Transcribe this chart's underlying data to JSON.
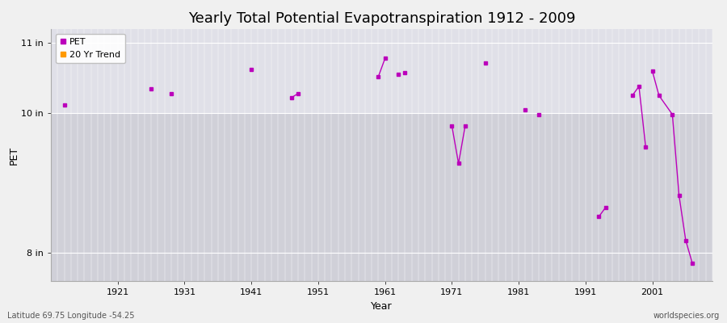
{
  "title": "Yearly Total Potential Evapotranspiration 1912 - 2009",
  "xlabel": "Year",
  "ylabel": "PET",
  "xlim": [
    1911,
    2010
  ],
  "ylim": [
    7.6,
    11.2
  ],
  "ytick_positions": [
    8,
    10,
    11
  ],
  "ytick_labels": [
    "8 in",
    "10 in",
    "11 in"
  ],
  "xticks": [
    1921,
    1931,
    1941,
    1951,
    1961,
    1971,
    1981,
    1991,
    2001
  ],
  "background_color": "#f0f0f0",
  "plot_bg_color_top": "#e8e8ec",
  "plot_bg_color_bottom": "#d8d8de",
  "grid_color": "#ffffff",
  "pet_color": "#bb00bb",
  "trend_color": "#ff9900",
  "pet_data": [
    [
      1913,
      10.12
    ],
    [
      1926,
      10.35
    ],
    [
      1929,
      10.28
    ],
    [
      1941,
      10.62
    ],
    [
      1947,
      10.22
    ],
    [
      1948,
      10.28
    ],
    [
      1960,
      10.52
    ],
    [
      1961,
      10.78
    ],
    [
      1963,
      10.55
    ],
    [
      1964,
      10.58
    ],
    [
      1971,
      9.82
    ],
    [
      1972,
      9.28
    ],
    [
      1973,
      9.82
    ],
    [
      1976,
      10.72
    ],
    [
      1982,
      10.05
    ],
    [
      1984,
      9.98
    ],
    [
      1993,
      8.52
    ],
    [
      1994,
      8.65
    ],
    [
      1998,
      10.25
    ],
    [
      1999,
      10.38
    ],
    [
      2000,
      9.52
    ],
    [
      2001,
      10.6
    ],
    [
      2002,
      10.25
    ],
    [
      2004,
      9.98
    ],
    [
      2005,
      8.82
    ],
    [
      2006,
      8.18
    ],
    [
      2007,
      7.85
    ]
  ],
  "connected_segments": [
    [
      [
        1947,
        10.22
      ],
      [
        1948,
        10.28
      ]
    ],
    [
      [
        1960,
        10.52
      ],
      [
        1961,
        10.78
      ]
    ],
    [
      [
        1971,
        9.82
      ],
      [
        1972,
        9.28
      ],
      [
        1973,
        9.82
      ]
    ],
    [
      [
        1993,
        8.52
      ],
      [
        1994,
        8.65
      ]
    ],
    [
      [
        1998,
        10.25
      ],
      [
        1999,
        10.38
      ],
      [
        2000,
        9.52
      ]
    ],
    [
      [
        2001,
        10.6
      ],
      [
        2002,
        10.25
      ],
      [
        2004,
        9.98
      ],
      [
        2005,
        8.82
      ],
      [
        2006,
        8.18
      ],
      [
        2007,
        7.85
      ]
    ]
  ],
  "title_fontsize": 13,
  "axis_label_fontsize": 9,
  "tick_fontsize": 8,
  "legend_fontsize": 8,
  "watermark": "worldspecies.org",
  "footer_left": "Latitude 69.75 Longitude -54.25"
}
